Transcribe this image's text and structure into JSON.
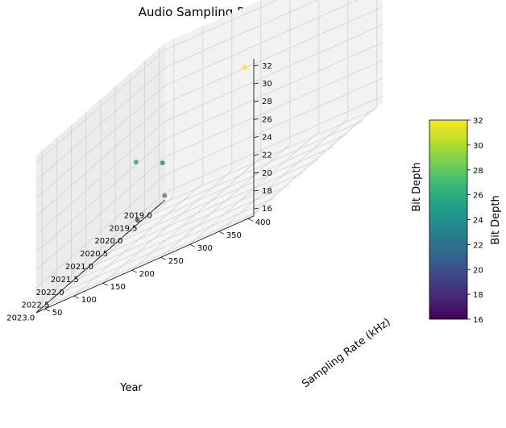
{
  "chart_data": {
    "type": "scatter3d",
    "title": "Audio Sampling Rates",
    "xlabel": "Year",
    "ylabel": "Sampling Rate (kHz)",
    "zlabel": "Bit Depth",
    "xlim": [
      2018.8,
      2023.2
    ],
    "ylim": [
      35,
      410
    ],
    "zlim": [
      15.2,
      32.8
    ],
    "xticks": [
      "2019.0",
      "2019.5",
      "2020.0",
      "2020.5",
      "2021.0",
      "2021.5",
      "2022.0",
      "2022.5",
      "2023.0"
    ],
    "yticks": [
      "50",
      "100",
      "150",
      "200",
      "250",
      "300",
      "350",
      "400"
    ],
    "zticks": [
      "16",
      "18",
      "20",
      "22",
      "24",
      "26",
      "28",
      "30",
      "32"
    ],
    "grid": true,
    "points": [
      {
        "x": 2019,
        "y": 44.1,
        "z": 16
      },
      {
        "x": 2020,
        "y": 48,
        "z": 16
      },
      {
        "x": 2021,
        "y": 96,
        "z": 24
      },
      {
        "x": 2022,
        "y": 192,
        "z": 24
      },
      {
        "x": 2023,
        "y": 384,
        "z": 32
      }
    ],
    "colorbar": {
      "label": "Bit Depth",
      "min": 16,
      "max": 32,
      "ticks": [
        "16",
        "18",
        "20",
        "22",
        "24",
        "26",
        "28",
        "30",
        "32"
      ],
      "colormap": "viridis",
      "stops": [
        "#440154",
        "#482878",
        "#3e4989",
        "#31688e",
        "#26828e",
        "#1f9e89",
        "#35b779",
        "#6ece58",
        "#b5de2b",
        "#fde725"
      ]
    }
  }
}
